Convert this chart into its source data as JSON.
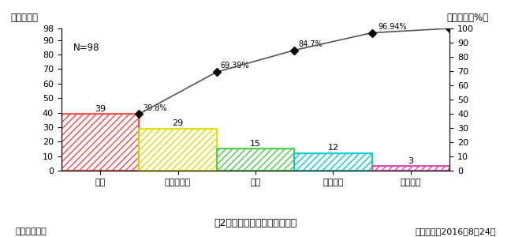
{
  "categories": [
    "空鼓",
    "厕度不均匀",
    "开裂",
    "粘结强度",
    "粉化松散"
  ],
  "values": [
    39,
    29,
    15,
    12,
    3
  ],
  "cumulative_pct": [
    39.8,
    69.39,
    84.7,
    96.94,
    100.0
  ],
  "bar_face_colors": [
    "#ffffff",
    "#ffffff",
    "#ffffff",
    "#ffffff",
    "#ffffff"
  ],
  "bar_hatch_colors": [
    "#ff4444",
    "#dddd00",
    "#44cc44",
    "#00cccc",
    "#dd44aa"
  ],
  "hatch": [
    "////",
    "////",
    "////",
    "////",
    "////"
  ],
  "left_ylabel": "频数（个）",
  "right_ylabel": "累计频率（%）",
  "ylim_left": [
    0,
    98
  ],
  "ylim_right": [
    0,
    100
  ],
  "yticks_left": [
    0,
    10,
    20,
    30,
    40,
    50,
    60,
    70,
    80,
    90,
    98
  ],
  "yticks_right": [
    0,
    10,
    20,
    30,
    40,
    50,
    60,
    70,
    80,
    90,
    100
  ],
  "annotation_n": "N=98",
  "title": "图2、防火涂料质量问题排列图",
  "footer_left": "制图人：叶田",
  "footer_right": "制图时间：2016年8月24日",
  "pct_labels": [
    "39.8%",
    "69.39%",
    "84.7%",
    "96.94%"
  ],
  "value_labels": [
    "39",
    "29",
    "15",
    "12",
    "3"
  ],
  "background_color": "#ffffff",
  "line_color": "#555555",
  "marker_style": "D",
  "marker_size": 5,
  "bar_width": 1.0
}
